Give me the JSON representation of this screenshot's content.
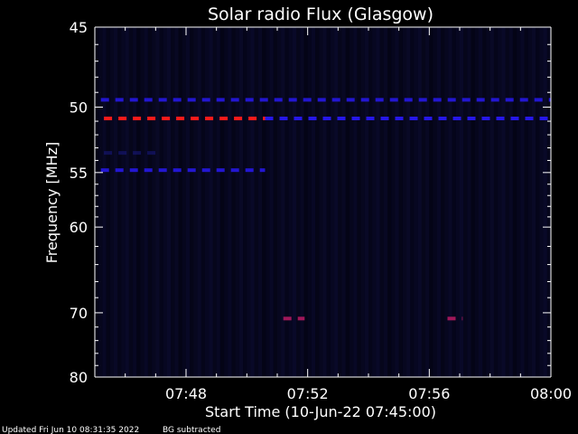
{
  "chart_data": {
    "type": "heatmap",
    "title": "Solar radio Flux (Glasgow)",
    "xlabel": "Start Time (10-Jun-22 07:45:00)",
    "ylabel": "Frequency [MHz]",
    "x_range_minutes": [
      0,
      15
    ],
    "ylim": [
      45,
      80
    ],
    "y_ticks": [
      "45",
      "50",
      "55",
      "60",
      "70",
      "80"
    ],
    "y_tick_values": [
      45,
      50,
      55,
      60,
      70,
      80
    ],
    "x_ticks": [
      "07:48",
      "07:52",
      "07:56",
      "08:00"
    ],
    "x_tick_minutes": [
      3,
      7,
      11,
      15
    ],
    "background_color": "#05051a",
    "bands": [
      {
        "freq_mhz": 49.5,
        "start_min": 0.2,
        "end_min": 15.0,
        "color": "#2a1aff",
        "intensity": 0.8
      },
      {
        "freq_mhz": 50.8,
        "start_min": 0.3,
        "end_min": 5.6,
        "color": "#ff1a1a",
        "intensity": 1.0
      },
      {
        "freq_mhz": 50.8,
        "start_min": 5.6,
        "end_min": 15.0,
        "color": "#2a1aff",
        "intensity": 0.9
      },
      {
        "freq_mhz": 53.4,
        "start_min": 0.3,
        "end_min": 2.0,
        "color": "#1a1a8c",
        "intensity": 0.5
      },
      {
        "freq_mhz": 54.8,
        "start_min": 0.2,
        "end_min": 5.6,
        "color": "#2a1aff",
        "intensity": 0.8
      },
      {
        "freq_mhz": 70.8,
        "start_min": 6.2,
        "end_min": 6.9,
        "color": "#b01a60",
        "intensity": 0.9
      },
      {
        "freq_mhz": 70.8,
        "start_min": 11.6,
        "end_min": 12.1,
        "color": "#b01a60",
        "intensity": 0.9
      }
    ],
    "footer_left": "Updated Fri Jun 10 08:31:35 2022",
    "footer_right": "BG subtracted"
  }
}
